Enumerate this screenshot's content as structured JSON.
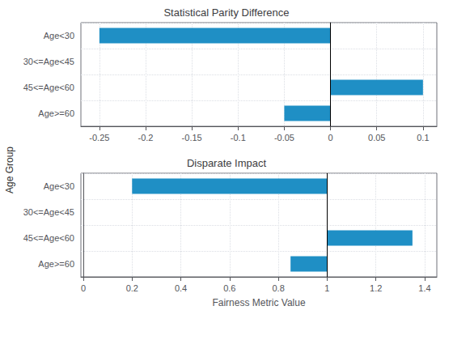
{
  "chart_data": [
    {
      "type": "bar",
      "orientation": "horizontal",
      "title": "Statistical Parity Difference",
      "categories": [
        "Age<30",
        "30<=Age<45",
        "45<=Age<60",
        "Age>=60"
      ],
      "values": [
        -0.25,
        0.0,
        0.1,
        -0.05
      ],
      "color": "#1f8fc5",
      "xlim": [
        -0.27,
        0.115
      ],
      "xticks": [
        -0.25,
        -0.2,
        -0.15,
        -0.1,
        -0.05,
        0.0,
        0.05,
        0.1
      ],
      "grid": true,
      "reference_line": 0.0
    },
    {
      "type": "bar",
      "orientation": "horizontal",
      "title": "Disparate Impact",
      "xlabel": "Fairness Metric Value",
      "ylabel": "Age Group",
      "categories": [
        "Age<30",
        "30<=Age<45",
        "45<=Age<60",
        "Age>=60"
      ],
      "starts": [
        0.2,
        1.0,
        1.0,
        0.85
      ],
      "values": [
        0.8,
        0.0,
        0.35,
        0.15
      ],
      "color": "#1f8fc5",
      "xlim": [
        -0.01,
        1.45
      ],
      "xticks": [
        0.0,
        0.2,
        0.4,
        0.6,
        0.8,
        1.0,
        1.2,
        1.4
      ],
      "grid": true,
      "reference_line": 1.0
    }
  ]
}
